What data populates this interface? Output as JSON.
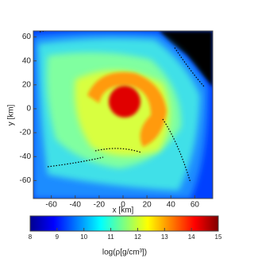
{
  "chart_data": {
    "type": "heatmap",
    "x_label": "x [km]",
    "y_label": "y [km]",
    "xlim": [
      -75,
      75
    ],
    "ylim": [
      -75,
      65
    ],
    "xticks": [
      -60,
      -40,
      -20,
      0,
      20,
      40,
      60
    ],
    "yticks": [
      -60,
      -40,
      -20,
      0,
      20,
      40,
      60
    ],
    "colorbar": {
      "label": "log(ρ[g/cm³])",
      "colormap": "jet",
      "clim": [
        8,
        15
      ],
      "ticks": [
        8,
        9,
        10,
        11,
        12,
        13,
        14,
        15
      ]
    }
  }
}
